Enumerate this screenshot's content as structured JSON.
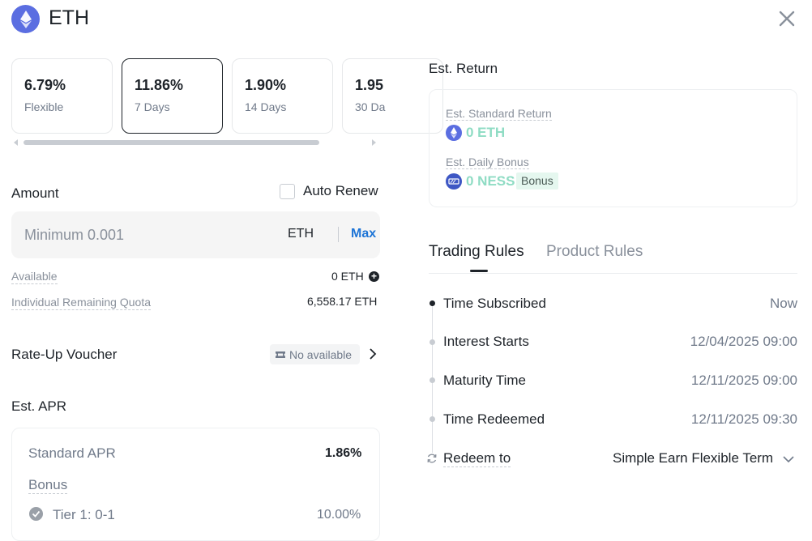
{
  "header": {
    "title": "ETH",
    "close_icon": "close-icon",
    "coin_icon": "eth-icon"
  },
  "terms": [
    {
      "rate": "6.79%",
      "label": "Flexible",
      "selected": false
    },
    {
      "rate": "11.86%",
      "label": "7 Days",
      "selected": true
    },
    {
      "rate": "1.90%",
      "label": "14 Days",
      "selected": false
    },
    {
      "rate": "1.95",
      "label": "30 Da",
      "selected": false
    }
  ],
  "amount": {
    "title": "Amount",
    "auto_renew_label": "Auto Renew",
    "auto_renew_checked": false,
    "placeholder": "Minimum 0.001",
    "value": "",
    "unit": "ETH",
    "max_label": "Max",
    "available_label": "Available",
    "available_value": "0 ETH",
    "quota_label": "Individual Remaining Quota",
    "quota_value": "6,558.17 ETH"
  },
  "voucher": {
    "title": "Rate-Up Voucher",
    "status": "No available"
  },
  "apr": {
    "title": "Est. APR",
    "standard_label": "Standard APR",
    "standard_value": "1.86%",
    "bonus_label": "Bonus",
    "tier_label": "Tier 1: 0-1",
    "tier_value": "10.00%"
  },
  "est_return": {
    "title": "Est. Return",
    "standard_label": "Est. Standard Return",
    "standard_value": "0 ETH",
    "daily_label": "Est. Daily Bonus",
    "daily_value": "0 NESS",
    "bonus_badge": "Bonus"
  },
  "tabs": [
    {
      "label": "Trading Rules",
      "active": true
    },
    {
      "label": "Product Rules",
      "active": false
    }
  ],
  "timeline": [
    {
      "label": "Time Subscribed",
      "value": "Now"
    },
    {
      "label": "Interest Starts",
      "value": "12/04/2025 09:00"
    },
    {
      "label": "Maturity Time",
      "value": "12/11/2025 09:00"
    },
    {
      "label": "Time Redeemed",
      "value": "12/11/2025 09:30"
    }
  ],
  "redeem": {
    "label": "Redeem to",
    "value": "Simple Earn Flexible Term"
  },
  "colors": {
    "accent_blue": "#1d74d6",
    "eth_purple": "#5b6ee1",
    "return_green": "#8fdcc4"
  }
}
